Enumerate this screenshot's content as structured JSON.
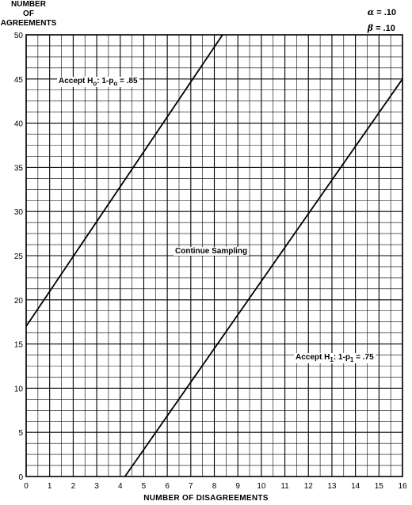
{
  "chart_data": {
    "type": "line",
    "title": "",
    "ylabel": [
      "NUMBER",
      "OF",
      "AGREEMENTS"
    ],
    "xlabel": "NUMBER OF DISAGREEMENTS",
    "xlim": [
      0,
      16
    ],
    "ylim": [
      0,
      50
    ],
    "x_ticks": [
      0,
      1,
      2,
      3,
      4,
      5,
      6,
      7,
      8,
      9,
      10,
      11,
      12,
      13,
      14,
      15,
      16
    ],
    "y_ticks": [
      0,
      5,
      10,
      15,
      20,
      25,
      30,
      35,
      40,
      45,
      50
    ],
    "grid": true,
    "grid_minor_y_step": 1.25,
    "grid_minor_x_step": 0.5,
    "parameters": [
      {
        "symbol": "α",
        "value": "= .10"
      },
      {
        "symbol": "β",
        "value": "= .10"
      }
    ],
    "series": [
      {
        "x": [
          0,
          8.35
        ],
        "y": [
          17,
          50
        ]
      },
      {
        "x": [
          4.2,
          16
        ],
        "y": [
          0,
          45
        ]
      }
    ],
    "annotations": {
      "accept_h0": {
        "prefix": "Accept H",
        "sub": "o",
        "mid": ":  1-p",
        "sub2": "o",
        "suffix": " = .85"
      },
      "continue": "Continue Sampling",
      "accept_h1": {
        "prefix": "Accept H",
        "sub": "1",
        "mid": ":  1-p",
        "sub2": "1",
        "suffix": " = .75"
      }
    }
  }
}
